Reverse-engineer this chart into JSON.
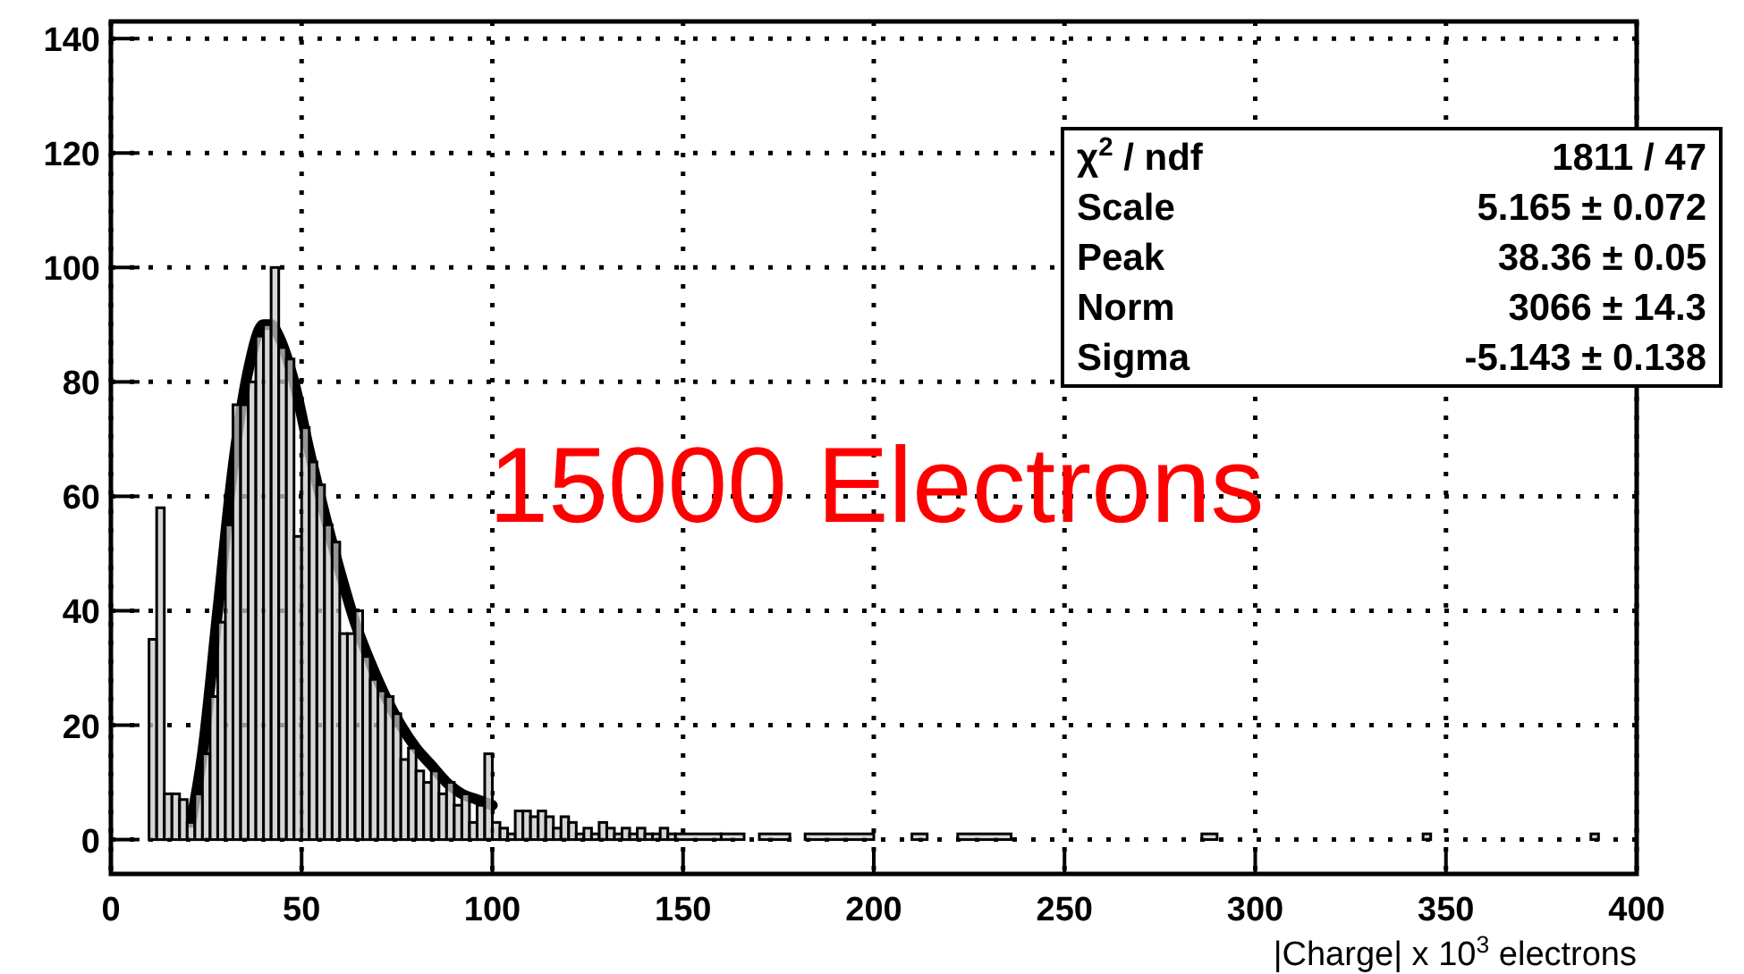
{
  "chart_data": {
    "type": "histogram",
    "xlabel": "|Charge| x 10$^{3}$ electrons",
    "bins": [
      10,
      12,
      14,
      16,
      18,
      20,
      22,
      24,
      26,
      28,
      30,
      32,
      34,
      36,
      38,
      40,
      42,
      44,
      46,
      48,
      50,
      52,
      54,
      56,
      58,
      60,
      62,
      64,
      66,
      68,
      70,
      72,
      74,
      76,
      78,
      80,
      82,
      84,
      86,
      88,
      90,
      92,
      94,
      96,
      98,
      100,
      102,
      104,
      106,
      108,
      110,
      112,
      114,
      116,
      118,
      120,
      122,
      124,
      126,
      128,
      130,
      132,
      134,
      136,
      138,
      140,
      142,
      144,
      146,
      148,
      160,
      166,
      170,
      178,
      182,
      200,
      210,
      214,
      222,
      236,
      286,
      290,
      344,
      346,
      388,
      390
    ],
    "series": [
      {
        "color": "#c8c8c8",
        "values": [
          35,
          58,
          8,
          8,
          7,
          3,
          8,
          15,
          25,
          38,
          55,
          76,
          76,
          80,
          88,
          90,
          100,
          86,
          84,
          53,
          72,
          66,
          62,
          55,
          52,
          36,
          36,
          40,
          32,
          28,
          26,
          25,
          22,
          14,
          16,
          12,
          10,
          12,
          8,
          10,
          6,
          8,
          3,
          6,
          15,
          3,
          2,
          1,
          5,
          5,
          4,
          5,
          4,
          2,
          4,
          3,
          1,
          2,
          1,
          3,
          2,
          1,
          2,
          1,
          2,
          1,
          1,
          2,
          1,
          1,
          1,
          0,
          1,
          0,
          1,
          0,
          1,
          0,
          1,
          0,
          1,
          0,
          1,
          0,
          1
        ]
      },
      {
        "type": "line",
        "color": "#000000",
        "x": [
          21,
          24,
          28,
          32,
          36,
          40,
          42,
          44,
          48,
          52,
          56,
          60,
          64,
          68,
          72,
          76,
          80,
          84,
          88,
          92,
          96,
          100
        ],
        "values": [
          3,
          15,
          40,
          65,
          82,
          90,
          90,
          88,
          80,
          68,
          57,
          47,
          38,
          31,
          25,
          20,
          16,
          13,
          10,
          8,
          7,
          6
        ]
      }
    ],
    "xlim": [
      0,
      400
    ],
    "xticks": [
      0,
      50,
      100,
      150,
      200,
      250,
      300,
      350,
      400
    ],
    "ylim": [
      -6,
      143
    ],
    "yticks": [
      0,
      20,
      40,
      60,
      80,
      100,
      120,
      140
    ],
    "grid": true,
    "annotations": [
      "χ$^{2}$ / ndf",
      "1811 / 47",
      "Scale",
      "5.165 ± 0.072",
      "Peak",
      "38.36 ± 0.05",
      "Norm",
      "3066 ± 14.3",
      "Sigma",
      "-5.143 ± 0.138",
      "15000 Electrons"
    ]
  }
}
